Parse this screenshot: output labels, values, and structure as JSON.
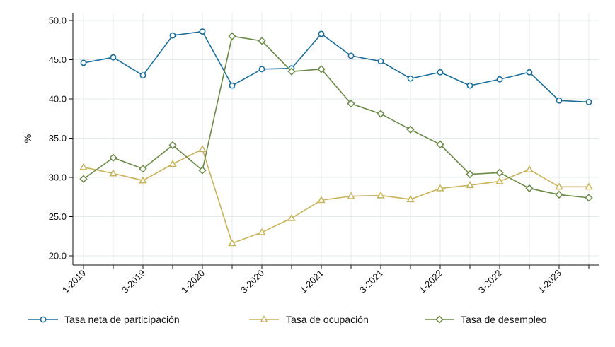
{
  "chart_data": {
    "type": "line",
    "ylabel": "%",
    "ylim": [
      20.0,
      50.0
    ],
    "yticks": [
      20.0,
      25.0,
      30.0,
      35.0,
      40.0,
      45.0,
      50.0
    ],
    "ytick_labels": [
      "20.0",
      "25.0",
      "30.0",
      "35.0",
      "40.0",
      "45.0",
      "50.0"
    ],
    "x": [
      "1-2019",
      "2-2019",
      "3-2019",
      "4-2019",
      "1-2020",
      "2-2020",
      "3-2020",
      "4-2020",
      "1-2021",
      "2-2021",
      "3-2021",
      "4-2021",
      "1-2022",
      "2-2022",
      "3-2022",
      "4-2022",
      "1-2023",
      "2-2023"
    ],
    "xtick_labels": [
      "1-2019",
      "3-2019",
      "1-2020",
      "3-2020",
      "1-2021",
      "3-2021",
      "1-2022",
      "3-2022",
      "1-2023"
    ],
    "grid": true,
    "legend_position": "bottom",
    "series": [
      {
        "name": "Tasa neta de participación",
        "color": "#1a6e9c",
        "marker": "circle",
        "values": [
          44.6,
          45.3,
          43.0,
          48.1,
          48.6,
          41.7,
          43.8,
          43.9,
          48.3,
          45.5,
          44.8,
          42.6,
          43.4,
          41.7,
          42.5,
          43.4,
          39.8,
          39.6
        ]
      },
      {
        "name": "Tasa de ocupación",
        "color": "#c8b25a",
        "marker": "triangle",
        "values": [
          31.3,
          30.5,
          29.6,
          31.7,
          33.6,
          21.6,
          23.0,
          24.8,
          27.1,
          27.6,
          27.7,
          27.2,
          28.6,
          29.0,
          29.5,
          31.0,
          28.8,
          28.8
        ]
      },
      {
        "name": "Tasa de desempleo",
        "color": "#6b8a47",
        "marker": "diamond",
        "values": [
          29.8,
          32.5,
          31.1,
          34.1,
          30.9,
          48.0,
          47.4,
          43.5,
          43.8,
          39.4,
          38.1,
          36.1,
          34.2,
          30.4,
          30.6,
          28.6,
          27.8,
          27.4
        ]
      }
    ]
  }
}
